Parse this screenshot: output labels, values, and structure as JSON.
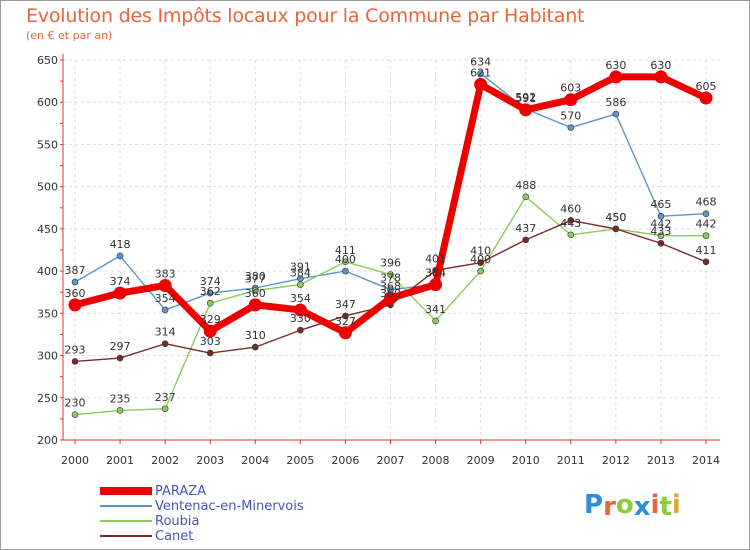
{
  "title": "Evolution des Impôts locaux pour la Commune par Habitant",
  "subtitle": "(en € et par an)",
  "logo": {
    "letters": [
      "P",
      "r",
      "o",
      "x",
      "i",
      "t",
      "i"
    ],
    "colors": [
      "#2a8fd6",
      "#e5663a",
      "#8ccc3c",
      "#2a8fd6",
      "#e5663a",
      "#8ccc3c",
      "#e5a43a"
    ]
  },
  "chart_data": {
    "type": "line",
    "x": [
      "2000",
      "2001",
      "2002",
      "2003",
      "2004",
      "2005",
      "2006",
      "2007",
      "2008",
      "2009",
      "2010",
      "2011",
      "2012",
      "2013",
      "2014"
    ],
    "ylim": [
      200,
      650
    ],
    "yticks": [
      "200",
      "250",
      "300",
      "350",
      "400",
      "450",
      "500",
      "550",
      "600",
      "650"
    ],
    "grid": true,
    "legend_position": "bottom-left",
    "series": [
      {
        "name": "Ventenac-en-Minervois",
        "color": "#5a96c8",
        "values": [
          387,
          418,
          354,
          374,
          380,
          391,
          400,
          378,
          384,
          634,
          592,
          570,
          586,
          465,
          468
        ],
        "labels": [
          "387",
          "418",
          "354",
          "374",
          "380",
          "391",
          "400",
          "378",
          "384",
          "634",
          "592",
          "570",
          "586",
          "465",
          "468"
        ]
      },
      {
        "name": "Roubia",
        "color": "#8ccc5c",
        "values": [
          230,
          235,
          237,
          362,
          377,
          384,
          411,
          396,
          341,
          400,
          488,
          443,
          450,
          442,
          442
        ],
        "labels": [
          "230",
          "235",
          "237",
          "362",
          "377",
          "384",
          "411",
          "396",
          "341",
          "400",
          "488",
          "443",
          "450",
          "442",
          "442"
        ]
      },
      {
        "name": "Canet",
        "color": "#7a2a2a",
        "values": [
          293,
          297,
          314,
          303,
          310,
          330,
          347,
          360,
          401,
          410,
          437,
          460,
          450,
          433,
          411
        ],
        "labels": [
          "293",
          "297",
          "314",
          "303",
          "310",
          "330",
          "347",
          "360",
          "401",
          "410",
          "437",
          "460",
          "450",
          "433",
          "411"
        ]
      },
      {
        "name": "PARAZA",
        "color": "#ee0000",
        "values": [
          360,
          374,
          383,
          329,
          360,
          354,
          327,
          368,
          384,
          621,
          591,
          603,
          630,
          630,
          605
        ],
        "labels": [
          "360",
          "374",
          "383",
          "329",
          "360",
          "354",
          "327",
          "368",
          "384",
          "621",
          "591",
          "603",
          "630",
          "630",
          "605"
        ]
      }
    ],
    "legend_order": [
      "PARAZA",
      "Ventenac-en-Minervois",
      "Roubia",
      "Canet"
    ]
  }
}
